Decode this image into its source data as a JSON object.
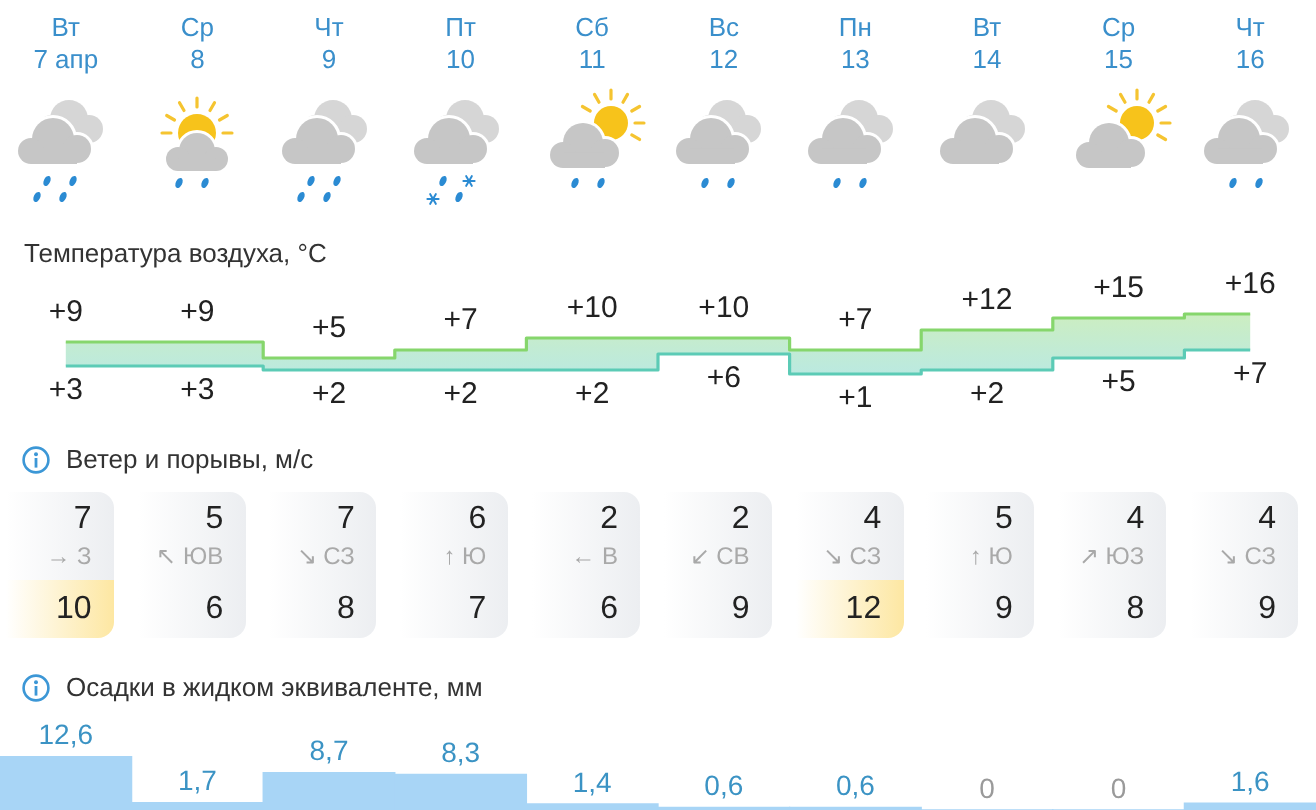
{
  "chart_data": [
    {
      "type": "step",
      "title": "Температура воздуха, °C",
      "categories": [
        "Вт 7 апр",
        "Ср 8",
        "Чт 9",
        "Пт 10",
        "Сб 11",
        "Вс 12",
        "Пн 13",
        "Вт 14",
        "Ср 15",
        "Чт 16"
      ],
      "tick_labels": "x",
      "series": [
        {
          "color": "#86d66c",
          "values": [
            9,
            9,
            5,
            7,
            10,
            10,
            7,
            12,
            15,
            16
          ],
          "value_labels": [
            "+9",
            "+9",
            "+5",
            "+7",
            "+10",
            "+10",
            "+7",
            "+12",
            "+15",
            "+16"
          ],
          "lower": [
            3,
            3,
            2,
            2,
            2,
            6,
            1,
            2,
            5,
            7
          ],
          "upper": [
            9,
            9,
            5,
            7,
            10,
            10,
            7,
            12,
            15,
            16
          ]
        },
        {
          "color": "#5ccbb6",
          "values": [
            3,
            3,
            2,
            2,
            2,
            6,
            1,
            2,
            5,
            7
          ],
          "value_labels": [
            "+3",
            "+3",
            "+2",
            "+2",
            "+2",
            "+6",
            "+1",
            "+2",
            "+5",
            "+7"
          ]
        }
      ]
    },
    {
      "type": "other",
      "title": "Ветер и порывы, м/с",
      "categories": [
        "→ З",
        "↖ ЮВ",
        "↘ СЗ",
        "↑ Ю",
        "← В",
        "↙ СВ",
        "↘ СЗ",
        "↑ Ю",
        "↗ ЮЗ",
        "↘ СЗ"
      ],
      "data_labels": true,
      "series": [
        {
          "color": "#eceef1",
          "values": [
            7,
            5,
            7,
            6,
            2,
            2,
            4,
            5,
            4,
            4
          ]
        },
        {
          "colors": [
            "#fde7a2",
            "#eceef1",
            "#eceef1",
            "#eceef1",
            "#eceef1",
            "#eceef1",
            "#fde7a2",
            "#eceef1",
            "#eceef1",
            "#eceef1"
          ],
          "values": [
            10,
            6,
            8,
            7,
            6,
            9,
            12,
            9,
            8,
            9
          ]
        }
      ]
    },
    {
      "type": "bar",
      "title": "Осадки в жидком эквиваленте, мм",
      "categories": [
        null,
        null,
        null,
        null,
        null,
        null,
        null,
        null,
        null,
        null
      ],
      "tick_labels": false,
      "color": "#a8d5f6",
      "values": [
        12.6,
        1.7,
        8.7,
        8.3,
        1.4,
        0.6,
        0.6,
        0,
        0,
        1.6
      ],
      "value_labels": [
        "12,6",
        "1,7",
        "8,7",
        "8,3",
        "1,4",
        "0,6",
        "0,6",
        "0",
        "0",
        "1,6"
      ]
    }
  ]
}
